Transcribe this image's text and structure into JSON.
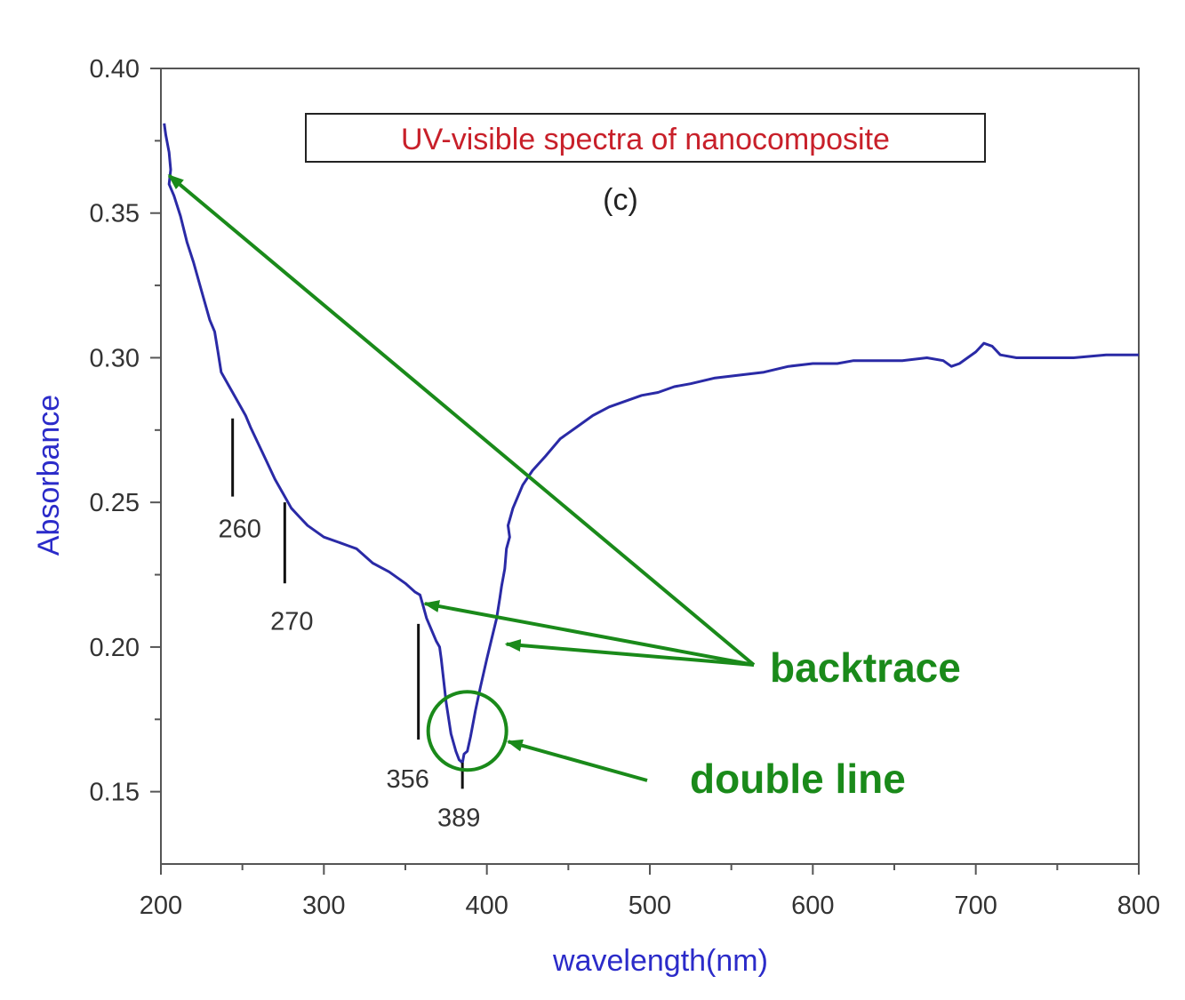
{
  "chart_data": {
    "type": "line",
    "title": "UV-visible spectra of nanocomposite",
    "subtitle": "(c)",
    "xlabel": "wavelength(nm)",
    "ylabel": "Absorbance",
    "xlim": [
      200,
      800
    ],
    "ylim": [
      0.125,
      0.4
    ],
    "x_ticks": [
      200,
      300,
      400,
      500,
      600,
      700,
      800
    ],
    "x_tick_labels": [
      "200",
      "300",
      "400",
      "500",
      "600",
      "700",
      "800"
    ],
    "y_ticks": [
      0.15,
      0.2,
      0.25,
      0.3,
      0.35,
      0.4
    ],
    "y_tick_labels": [
      "0.15",
      "0.20",
      "0.25",
      "0.30",
      "0.35",
      "0.40"
    ],
    "grid": false,
    "legend_placement": "top-center",
    "series": [
      {
        "color": "#2a2aa6",
        "x": [
          202,
          203,
          205,
          206,
          205,
          208,
          212,
          216,
          220,
          225,
          230,
          233,
          235,
          237,
          242,
          248,
          252,
          255,
          260,
          265,
          270,
          275,
          280,
          285,
          290,
          300,
          310,
          315,
          320,
          330,
          340,
          350,
          356,
          359,
          361,
          363,
          366,
          369,
          371,
          372,
          375,
          378,
          381,
          383,
          385,
          386,
          388,
          390,
          393,
          396,
          400,
          403,
          406,
          408,
          409,
          411,
          412,
          414,
          413,
          416,
          419,
          422,
          428,
          436,
          445,
          455,
          465,
          475,
          485,
          495,
          505,
          515,
          525,
          540,
          555,
          570,
          585,
          600,
          615,
          625,
          640,
          655,
          670,
          680,
          685,
          690,
          700,
          705,
          710,
          715,
          725,
          740,
          760,
          780,
          800
        ],
        "y": [
          0.381,
          0.377,
          0.371,
          0.365,
          0.36,
          0.356,
          0.349,
          0.34,
          0.333,
          0.323,
          0.313,
          0.309,
          0.302,
          0.295,
          0.29,
          0.284,
          0.28,
          0.276,
          0.27,
          0.264,
          0.258,
          0.253,
          0.248,
          0.245,
          0.242,
          0.238,
          0.236,
          0.235,
          0.234,
          0.229,
          0.226,
          0.222,
          0.219,
          0.218,
          0.214,
          0.21,
          0.206,
          0.202,
          0.2,
          0.196,
          0.181,
          0.17,
          0.164,
          0.161,
          0.16,
          0.163,
          0.164,
          0.169,
          0.178,
          0.186,
          0.196,
          0.203,
          0.21,
          0.217,
          0.221,
          0.227,
          0.234,
          0.238,
          0.242,
          0.248,
          0.252,
          0.256,
          0.261,
          0.266,
          0.272,
          0.276,
          0.28,
          0.283,
          0.285,
          0.287,
          0.288,
          0.29,
          0.291,
          0.293,
          0.294,
          0.295,
          0.297,
          0.298,
          0.298,
          0.299,
          0.299,
          0.299,
          0.3,
          0.299,
          0.297,
          0.298,
          0.302,
          0.305,
          0.304,
          0.301,
          0.3,
          0.3,
          0.3,
          0.301,
          0.301
        ]
      }
    ],
    "peak_markers": [
      {
        "label": "260",
        "x": 244,
        "y_top": 0.279,
        "y_bottom": 0.252
      },
      {
        "label": "270",
        "x": 276,
        "y_top": 0.25,
        "y_bottom": 0.222
      },
      {
        "label": "356",
        "x": 358,
        "y_top": 0.208,
        "y_bottom": 0.168
      },
      {
        "label": "389",
        "x": 385,
        "y_top": 0.16,
        "y_bottom": 0.151
      }
    ],
    "annotations": {
      "note_color": "#1a8a1a",
      "backtrace_label": "backtrace",
      "double_line_label": "double line",
      "backtrace_targets": [
        [
          205,
          0.363
        ],
        [
          362,
          0.215
        ],
        [
          412,
          0.201
        ]
      ],
      "double_line_circle": {
        "x": 388,
        "y": 0.171
      }
    }
  }
}
